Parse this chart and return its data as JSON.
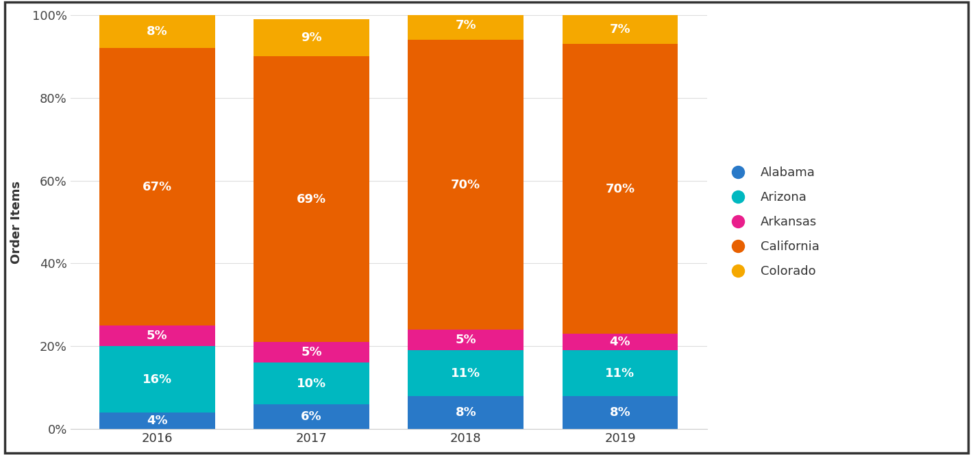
{
  "years": [
    "2016",
    "2017",
    "2018",
    "2019"
  ],
  "series": {
    "Alabama": [
      4,
      6,
      8,
      8
    ],
    "Arizona": [
      16,
      10,
      11,
      11
    ],
    "Arkansas": [
      5,
      5,
      5,
      4
    ],
    "California": [
      67,
      69,
      70,
      70
    ],
    "Colorado": [
      8,
      9,
      7,
      7
    ]
  },
  "colors": {
    "Alabama": "#2979c8",
    "Arizona": "#00b8c0",
    "Arkansas": "#e91e8c",
    "California": "#e86000",
    "Colorado": "#f5a800"
  },
  "ylabel": "Order Items",
  "ylim": [
    0,
    100
  ],
  "yticks": [
    0,
    20,
    40,
    60,
    80,
    100
  ],
  "ytick_labels": [
    "0%",
    "20%",
    "40%",
    "60%",
    "80%",
    "100%"
  ],
  "background_color": "#ffffff",
  "plot_background": "#ffffff",
  "bar_width": 0.75,
  "legend_marker_size": 14,
  "label_fontsize": 13,
  "tick_fontsize": 13,
  "legend_fontsize": 13,
  "value_label_fontsize": 13,
  "border_color": "#333333",
  "grid_color": "#dddddd"
}
